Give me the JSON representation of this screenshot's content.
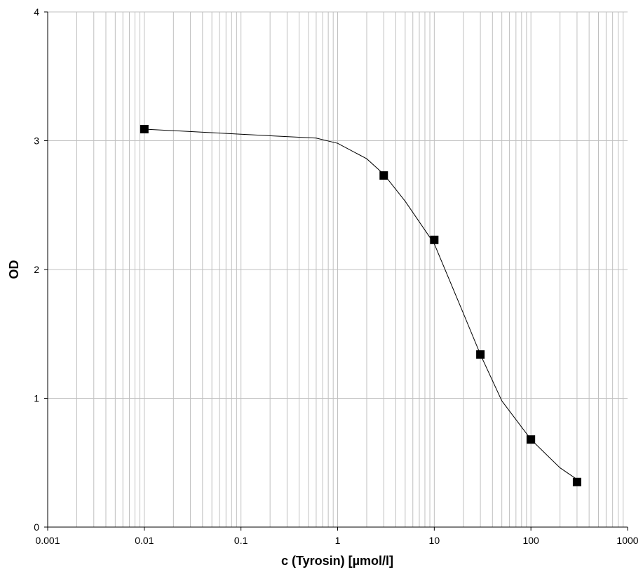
{
  "chart_data": {
    "type": "scatter",
    "title": "",
    "xlabel": "c (Tyrosin)  [µmol/l]",
    "ylabel": "OD",
    "xscale": "log",
    "xlim": [
      0.001,
      1000
    ],
    "ylim": [
      0,
      4
    ],
    "x_ticks": [
      "0.001",
      "0.01",
      "0.1",
      "1",
      "10",
      "100",
      "1000"
    ],
    "y_ticks": [
      "0",
      "1",
      "2",
      "3",
      "4"
    ],
    "grid": true,
    "legend": "none",
    "points": {
      "x": [
        0.01,
        3,
        10,
        30,
        100,
        300
      ],
      "y": [
        3.09,
        2.73,
        2.23,
        1.34,
        0.68,
        0.35
      ]
    },
    "fit_curve": {
      "x": [
        0.01,
        0.1,
        0.6,
        1,
        2,
        3,
        5,
        10,
        20,
        30,
        50,
        100,
        200,
        300
      ],
      "y": [
        3.09,
        3.05,
        3.02,
        2.98,
        2.86,
        2.74,
        2.53,
        2.2,
        1.66,
        1.34,
        0.98,
        0.68,
        0.46,
        0.37
      ]
    },
    "colors": {
      "marker": "#000000",
      "curve": "#000000",
      "grid": "#c0c0c0",
      "axis": "#000000"
    }
  }
}
